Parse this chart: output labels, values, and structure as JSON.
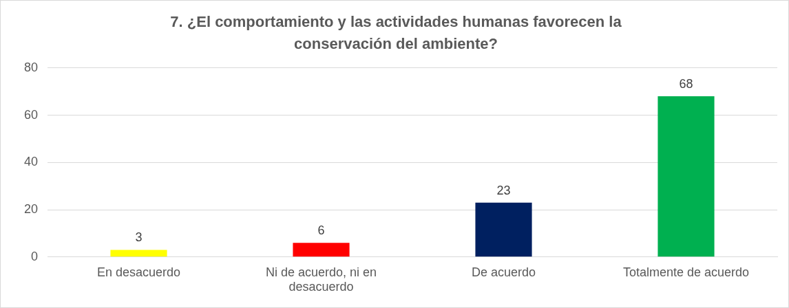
{
  "chart_data": {
    "type": "bar",
    "title": "7. ¿El comportamiento y las actividades humanas favorecen la conservación del ambiente?",
    "categories": [
      "En desacuerdo",
      "Ni de acuerdo, ni en desacuerdo",
      "De acuerdo",
      "Totalmente de acuerdo"
    ],
    "values": [
      3,
      6,
      23,
      68
    ],
    "colors": [
      "#ffff00",
      "#ff0000",
      "#002060",
      "#00b050"
    ],
    "ylim": [
      0,
      80
    ],
    "yticks": [
      0,
      20,
      40,
      60,
      80
    ],
    "grid": "y",
    "legend": false,
    "data_labels": true
  }
}
